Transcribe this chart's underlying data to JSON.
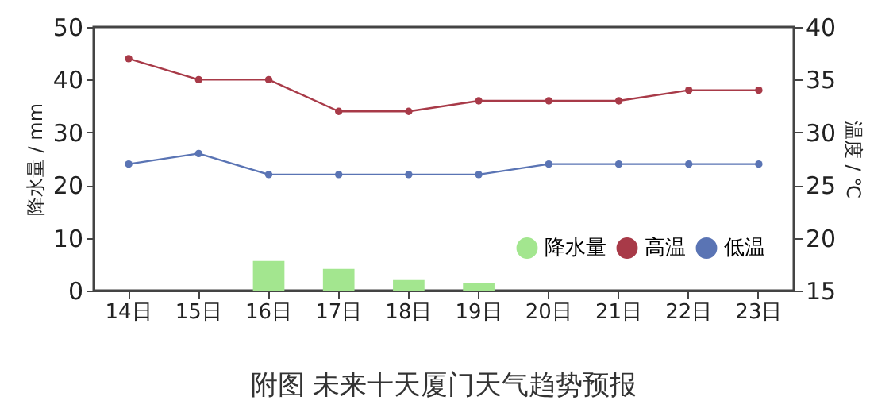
{
  "chart_data": {
    "type": "bar",
    "title": "附图 未来十天厦门天气趋势预报",
    "categories": [
      "14日",
      "15日",
      "16日",
      "17日",
      "18日",
      "19日",
      "20日",
      "21日",
      "22日",
      "23日"
    ],
    "series": [
      {
        "name": "降水量",
        "color": "#a3e68f",
        "values": [
          0,
          0,
          5.6,
          4.1,
          2,
          1.5,
          0,
          0,
          0,
          0
        ]
      },
      {
        "name": "高温",
        "type": "line",
        "axis": "y2",
        "color": "#a83a48",
        "values": [
          37,
          35,
          35,
          32,
          32,
          33,
          33,
          33,
          34,
          34
        ]
      },
      {
        "name": "低温",
        "type": "line",
        "axis": "y2",
        "color": "#5a74b4",
        "values": [
          27,
          28,
          26,
          26,
          26,
          26,
          27,
          27,
          27,
          27
        ]
      }
    ],
    "ylabel": "降水量 / mm",
    "y2label": "温度 / ℃",
    "ylim": [
      0,
      50
    ],
    "yticks": [
      0,
      10,
      20,
      30,
      40,
      50
    ],
    "y2lim": [
      15,
      40
    ],
    "y2ticks": [
      15,
      20,
      25,
      30,
      35,
      40
    ],
    "legend": "bottom right",
    "marker": "circle",
    "grid": false
  }
}
